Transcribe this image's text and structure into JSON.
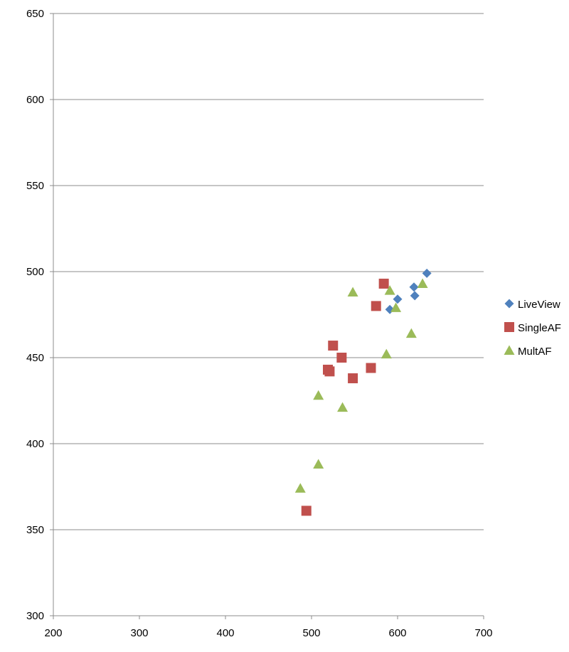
{
  "chart_data": {
    "type": "scatter",
    "title": "",
    "xlabel": "",
    "ylabel": "",
    "xlim": [
      200,
      700
    ],
    "ylim": [
      300,
      650
    ],
    "xticks": [
      200,
      300,
      400,
      500,
      600,
      700
    ],
    "yticks": [
      300,
      350,
      400,
      450,
      500,
      550,
      600,
      650
    ],
    "grid": "horizontal",
    "legend": "right",
    "series": [
      {
        "name": "LiveView",
        "marker": "diamond",
        "color": "#4F81BD",
        "points": [
          [
            591,
            478
          ],
          [
            600,
            484
          ],
          [
            619,
            491
          ],
          [
            620,
            486
          ],
          [
            634,
            499
          ]
        ]
      },
      {
        "name": "SingleAF",
        "marker": "square",
        "color": "#C0504D",
        "points": [
          [
            494,
            361
          ],
          [
            519,
            443
          ],
          [
            521,
            442
          ],
          [
            525,
            457
          ],
          [
            535,
            450
          ],
          [
            548,
            438
          ],
          [
            569,
            444
          ],
          [
            575,
            480
          ],
          [
            584,
            493
          ]
        ]
      },
      {
        "name": "MultAF",
        "marker": "triangle",
        "color": "#9BBB59",
        "points": [
          [
            487,
            374
          ],
          [
            508,
            388
          ],
          [
            508,
            428
          ],
          [
            536,
            421
          ],
          [
            548,
            488
          ],
          [
            587,
            452
          ],
          [
            591,
            489
          ],
          [
            598,
            479
          ],
          [
            616,
            464
          ],
          [
            629,
            493
          ]
        ]
      }
    ]
  }
}
